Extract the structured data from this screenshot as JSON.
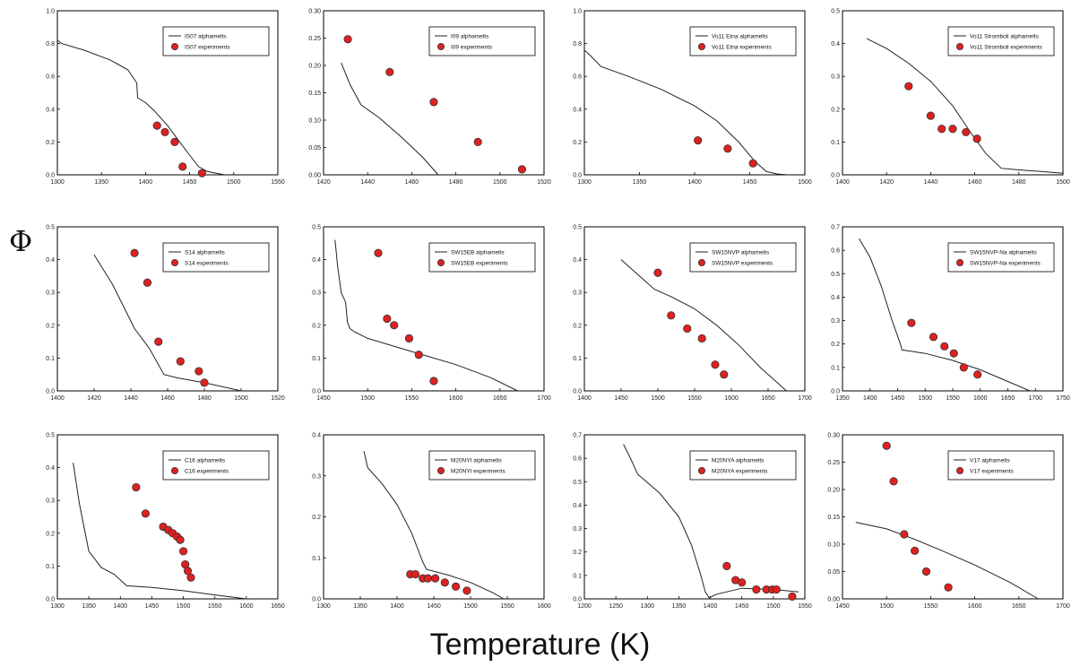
{
  "figure": {
    "ylabel": "Φ",
    "xlabel": "Temperature (K)",
    "colors": {
      "curve": "#222222",
      "marker": "#e02020",
      "marker_edge": "#333333",
      "axis": "#000000"
    }
  },
  "chart_data": [
    {
      "type": "scatter",
      "title": "",
      "xlim": [
        1300,
        1550
      ],
      "ylim": [
        0,
        1.0
      ],
      "xticks": [
        "1300",
        "1350",
        "1400",
        "1450",
        "1500",
        "1550"
      ],
      "yticks": [
        "0.0",
        "0.2",
        "0.4",
        "0.6",
        "0.8",
        "1.0"
      ],
      "yfmt": 1,
      "legend_pos": "top-right",
      "series": [
        {
          "name": "IS07 alphamelts",
          "kind": "line",
          "x": [
            1300,
            1305,
            1330,
            1360,
            1380,
            1390,
            1391,
            1400,
            1410,
            1425,
            1440,
            1450,
            1460,
            1470,
            1480,
            1490
          ],
          "y": [
            0.82,
            0.8,
            0.76,
            0.7,
            0.64,
            0.56,
            0.47,
            0.44,
            0.39,
            0.3,
            0.19,
            0.12,
            0.05,
            0.02,
            0.01,
            0.0
          ]
        },
        {
          "name": "IS07 experiments",
          "kind": "points",
          "x": [
            1413,
            1422,
            1433,
            1442,
            1464
          ],
          "y": [
            0.3,
            0.26,
            0.2,
            0.05,
            0.01
          ]
        }
      ]
    },
    {
      "type": "scatter",
      "title": "",
      "xlim": [
        1420,
        1520
      ],
      "ylim": [
        0,
        0.3
      ],
      "xticks": [
        "1420",
        "1440",
        "1460",
        "1480",
        "1500",
        "1520"
      ],
      "yticks": [
        "0.00",
        "0.05",
        "0.10",
        "0.15",
        "0.20",
        "0.25",
        "0.30"
      ],
      "yfmt": 2,
      "legend_pos": "top-right",
      "series": [
        {
          "name": "I09 alphamelts",
          "kind": "line",
          "x": [
            1428,
            1432,
            1437,
            1445,
            1455,
            1465,
            1472
          ],
          "y": [
            0.205,
            0.165,
            0.128,
            0.105,
            0.07,
            0.032,
            0.0
          ]
        },
        {
          "name": "I09 experiments",
          "kind": "points",
          "x": [
            1431,
            1450,
            1470,
            1490,
            1510
          ],
          "y": [
            0.248,
            0.188,
            0.133,
            0.06,
            0.01
          ]
        }
      ]
    },
    {
      "type": "scatter",
      "title": "",
      "xlim": [
        1300,
        1500
      ],
      "ylim": [
        0,
        1.0
      ],
      "xticks": [
        "1300",
        "1350",
        "1400",
        "1450",
        "1500"
      ],
      "yticks": [
        "0.0",
        "0.2",
        "0.4",
        "0.6",
        "0.8",
        "1.0"
      ],
      "yfmt": 1,
      "legend_pos": "top-right",
      "series": [
        {
          "name": "Vo11 Etna alphamelts",
          "kind": "line",
          "x": [
            1300,
            1305,
            1315,
            1340,
            1370,
            1400,
            1420,
            1440,
            1455,
            1465,
            1475,
            1485
          ],
          "y": [
            0.76,
            0.73,
            0.66,
            0.6,
            0.52,
            0.42,
            0.33,
            0.2,
            0.08,
            0.02,
            0.005,
            0.0
          ]
        },
        {
          "name": "Vo11 Etna experiments",
          "kind": "points",
          "x": [
            1403,
            1430,
            1453
          ],
          "y": [
            0.21,
            0.16,
            0.07
          ]
        }
      ]
    },
    {
      "type": "scatter",
      "title": "",
      "xlim": [
        1400,
        1500
      ],
      "ylim": [
        0,
        0.5
      ],
      "xticks": [
        "1400",
        "1420",
        "1440",
        "1460",
        "1480",
        "1500"
      ],
      "yticks": [
        "0.0",
        "0.1",
        "0.2",
        "0.3",
        "0.4",
        "0.5"
      ],
      "yfmt": 1,
      "legend_pos": "top-right",
      "series": [
        {
          "name": "Vo11 Stromboli alphamelts",
          "kind": "line",
          "x": [
            1411,
            1420,
            1430,
            1440,
            1450,
            1458,
            1465,
            1472,
            1480,
            1490,
            1500
          ],
          "y": [
            0.415,
            0.385,
            0.34,
            0.285,
            0.21,
            0.13,
            0.065,
            0.02,
            0.015,
            0.01,
            0.005
          ]
        },
        {
          "name": "Vo11 Stromboli experiments",
          "kind": "points",
          "x": [
            1430,
            1440,
            1445,
            1450,
            1456,
            1461
          ],
          "y": [
            0.27,
            0.18,
            0.14,
            0.14,
            0.13,
            0.11
          ]
        }
      ]
    },
    {
      "type": "scatter",
      "title": "",
      "xlim": [
        1400,
        1520
      ],
      "ylim": [
        0,
        0.5
      ],
      "xticks": [
        "1400",
        "1420",
        "1440",
        "1460",
        "1480",
        "1500",
        "1520"
      ],
      "yticks": [
        "0.0",
        "0.1",
        "0.2",
        "0.3",
        "0.4",
        "0.5"
      ],
      "yfmt": 1,
      "legend_pos": "top-right",
      "series": [
        {
          "name": "S14 alphamelts",
          "kind": "line",
          "x": [
            1420,
            1430,
            1442,
            1450,
            1458,
            1465,
            1480,
            1500
          ],
          "y": [
            0.415,
            0.325,
            0.19,
            0.13,
            0.05,
            0.04,
            0.025,
            0.0
          ]
        },
        {
          "name": "S14 experiments",
          "kind": "points",
          "x": [
            1442,
            1449,
            1455,
            1467,
            1477,
            1480
          ],
          "y": [
            0.42,
            0.33,
            0.15,
            0.09,
            0.06,
            0.025
          ]
        }
      ]
    },
    {
      "type": "scatter",
      "title": "",
      "xlim": [
        1450,
        1700
      ],
      "ylim": [
        0,
        0.5
      ],
      "xticks": [
        "1450",
        "1500",
        "1550",
        "1600",
        "1650",
        "1700"
      ],
      "yticks": [
        "0.0",
        "0.1",
        "0.2",
        "0.3",
        "0.4",
        "0.5"
      ],
      "yfmt": 1,
      "legend_pos": "top-right",
      "series": [
        {
          "name": "SW15EB alphamelts",
          "kind": "line",
          "x": [
            1463,
            1466,
            1470,
            1475,
            1477,
            1480,
            1485,
            1500,
            1550,
            1600,
            1640,
            1670
          ],
          "y": [
            0.46,
            0.38,
            0.3,
            0.27,
            0.21,
            0.19,
            0.18,
            0.16,
            0.12,
            0.08,
            0.04,
            0.0
          ]
        },
        {
          "name": "SW15EB experiments",
          "kind": "points",
          "x": [
            1512,
            1522,
            1530,
            1547,
            1558,
            1575
          ],
          "y": [
            0.42,
            0.22,
            0.2,
            0.16,
            0.11,
            0.03
          ]
        }
      ]
    },
    {
      "type": "scatter",
      "title": "",
      "xlim": [
        1400,
        1700
      ],
      "ylim": [
        0,
        0.5
      ],
      "xticks": [
        "1400",
        "1450",
        "1500",
        "1550",
        "1600",
        "1650",
        "1700"
      ],
      "yticks": [
        "0.0",
        "0.1",
        "0.2",
        "0.3",
        "0.4",
        "0.5"
      ],
      "yfmt": 1,
      "legend_pos": "top-right",
      "series": [
        {
          "name": "SW15NVP alphamelts",
          "kind": "line",
          "x": [
            1450,
            1475,
            1495,
            1520,
            1550,
            1580,
            1610,
            1640,
            1660,
            1675
          ],
          "y": [
            0.4,
            0.35,
            0.31,
            0.285,
            0.25,
            0.2,
            0.14,
            0.07,
            0.03,
            0.0
          ]
        },
        {
          "name": "SW15NVP experiments",
          "kind": "points",
          "x": [
            1500,
            1518,
            1540,
            1560,
            1578,
            1590
          ],
          "y": [
            0.36,
            0.23,
            0.19,
            0.16,
            0.08,
            0.05
          ]
        }
      ]
    },
    {
      "type": "scatter",
      "title": "",
      "xlim": [
        1350,
        1750
      ],
      "ylim": [
        0,
        0.7
      ],
      "xticks": [
        "1350",
        "1400",
        "1450",
        "1500",
        "1550",
        "1600",
        "1650",
        "1700",
        "1750"
      ],
      "yticks": [
        "0.0",
        "0.1",
        "0.2",
        "0.3",
        "0.4",
        "0.5",
        "0.6",
        "0.7"
      ],
      "yfmt": 1,
      "legend_pos": "top-right",
      "series": [
        {
          "name": "SW15NVP-Na alphamelts",
          "kind": "line",
          "x": [
            1380,
            1400,
            1420,
            1440,
            1455,
            1458,
            1500,
            1550,
            1600,
            1650,
            1690
          ],
          "y": [
            0.65,
            0.57,
            0.45,
            0.3,
            0.2,
            0.175,
            0.16,
            0.13,
            0.09,
            0.04,
            0.0
          ]
        },
        {
          "name": "SW15NVP-Na experiments",
          "kind": "points",
          "x": [
            1475,
            1515,
            1535,
            1552,
            1570,
            1595
          ],
          "y": [
            0.29,
            0.23,
            0.19,
            0.16,
            0.1,
            0.07
          ]
        }
      ]
    },
    {
      "type": "scatter",
      "title": "",
      "xlim": [
        1300,
        1650
      ],
      "ylim": [
        0,
        0.5
      ],
      "xticks": [
        "1300",
        "1350",
        "1400",
        "1450",
        "1500",
        "1550",
        "1600",
        "1650"
      ],
      "yticks": [
        "0.0",
        "0.1",
        "0.2",
        "0.3",
        "0.4",
        "0.5"
      ],
      "yfmt": 1,
      "legend_pos": "top-right",
      "series": [
        {
          "name": "C16 alphamelts",
          "kind": "line",
          "x": [
            1325,
            1335,
            1350,
            1370,
            1390,
            1410,
            1450,
            1500,
            1550,
            1600
          ],
          "y": [
            0.415,
            0.29,
            0.145,
            0.095,
            0.075,
            0.04,
            0.035,
            0.025,
            0.012,
            0.0
          ]
        },
        {
          "name": "C16 experiments",
          "kind": "points",
          "x": [
            1425,
            1440,
            1468,
            1476,
            1483,
            1490,
            1495,
            1500,
            1503,
            1507,
            1512
          ],
          "y": [
            0.34,
            0.26,
            0.22,
            0.21,
            0.2,
            0.19,
            0.18,
            0.145,
            0.105,
            0.085,
            0.065
          ]
        }
      ]
    },
    {
      "type": "scatter",
      "title": "",
      "xlim": [
        1300,
        1600
      ],
      "ylim": [
        0,
        0.4
      ],
      "xticks": [
        "1300",
        "1350",
        "1400",
        "1450",
        "1500",
        "1550",
        "1600"
      ],
      "yticks": [
        "0.0",
        "0.1",
        "0.2",
        "0.3",
        "0.4"
      ],
      "yfmt": 1,
      "legend_pos": "top-right",
      "series": [
        {
          "name": "M20NYI alphamelts",
          "kind": "line",
          "x": [
            1355,
            1360,
            1380,
            1400,
            1420,
            1435,
            1440,
            1470,
            1500,
            1530,
            1545
          ],
          "y": [
            0.36,
            0.32,
            0.28,
            0.23,
            0.16,
            0.09,
            0.072,
            0.058,
            0.04,
            0.015,
            0.0
          ]
        },
        {
          "name": "M20NYI experiments",
          "kind": "points",
          "x": [
            1418,
            1425,
            1435,
            1442,
            1452,
            1465,
            1480,
            1495
          ],
          "y": [
            0.06,
            0.06,
            0.05,
            0.05,
            0.05,
            0.04,
            0.03,
            0.02
          ]
        }
      ]
    },
    {
      "type": "scatter",
      "title": "",
      "xlim": [
        1200,
        1550
      ],
      "ylim": [
        0,
        0.7
      ],
      "xticks": [
        "1200",
        "1250",
        "1300",
        "1350",
        "1400",
        "1450",
        "1500",
        "1550"
      ],
      "yticks": [
        "0.0",
        "0.1",
        "0.2",
        "0.3",
        "0.4",
        "0.5",
        "0.6",
        "0.7"
      ],
      "yfmt": 1,
      "legend_pos": "top-right",
      "series": [
        {
          "name": "M20NYA alphamelts",
          "kind": "line",
          "x": [
            1262,
            1275,
            1285,
            1290,
            1320,
            1350,
            1370,
            1385,
            1392,
            1398,
            1410,
            1450,
            1500,
            1540
          ],
          "y": [
            0.66,
            0.59,
            0.53,
            0.52,
            0.45,
            0.35,
            0.23,
            0.1,
            0.03,
            0.005,
            0.02,
            0.045,
            0.04,
            0.03
          ]
        },
        {
          "name": "M20NYA experiments",
          "kind": "points",
          "x": [
            1426,
            1440,
            1450,
            1473,
            1489,
            1498,
            1505,
            1530
          ],
          "y": [
            0.14,
            0.08,
            0.07,
            0.04,
            0.04,
            0.04,
            0.04,
            0.01
          ]
        }
      ]
    },
    {
      "type": "scatter",
      "title": "",
      "xlim": [
        1450,
        1700
      ],
      "ylim": [
        0,
        0.3
      ],
      "xticks": [
        "1450",
        "1500",
        "1550",
        "1600",
        "1650",
        "1700"
      ],
      "yticks": [
        "0.00",
        "0.05",
        "0.10",
        "0.15",
        "0.20",
        "0.25",
        "0.30"
      ],
      "yfmt": 2,
      "legend_pos": "top-right",
      "series": [
        {
          "name": "V17 alphamelts",
          "kind": "line",
          "x": [
            1465,
            1500,
            1530,
            1560,
            1600,
            1640,
            1672
          ],
          "y": [
            0.14,
            0.128,
            0.11,
            0.09,
            0.062,
            0.03,
            0.0
          ]
        },
        {
          "name": "V17 experiments",
          "kind": "points",
          "x": [
            1500,
            1508,
            1520,
            1532,
            1545,
            1570
          ],
          "y": [
            0.28,
            0.215,
            0.118,
            0.088,
            0.05,
            0.021
          ]
        }
      ]
    }
  ]
}
